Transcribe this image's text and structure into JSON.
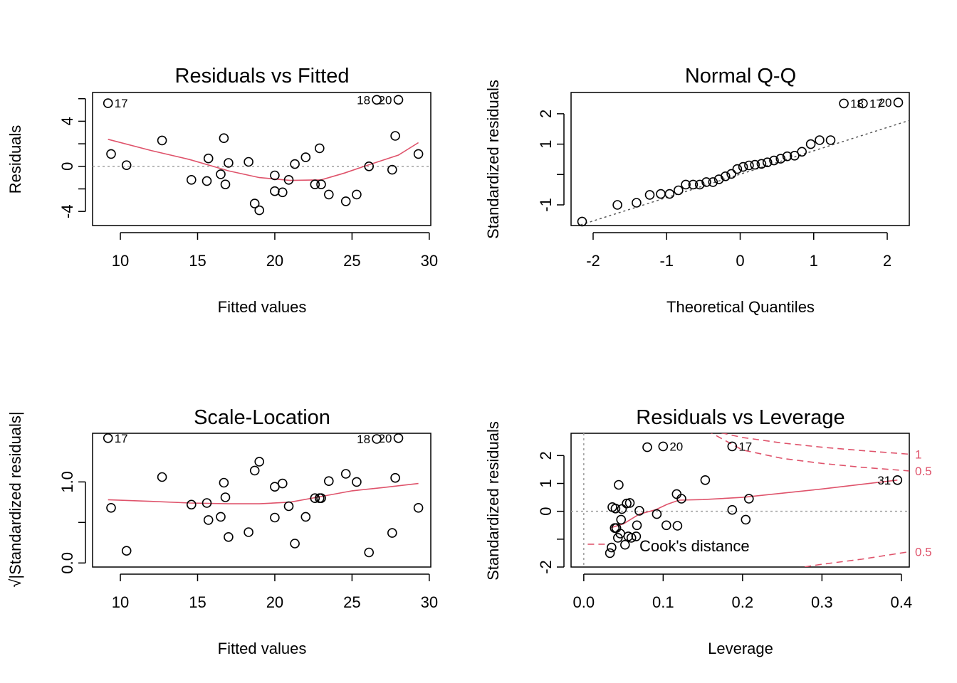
{
  "colors": {
    "smooth": "#DF536B",
    "reference": "#9E9E9E",
    "point": "#000000",
    "cook": "#DF536B"
  },
  "chart_data": [
    {
      "type": "scatter",
      "title": "Residuals vs Fitted",
      "xlabel": "Fitted values",
      "ylabel": "Residuals",
      "xlim": [
        8.2,
        30.1
      ],
      "ylim": [
        -5.25,
        6.55
      ],
      "xticks": [
        10,
        15,
        20,
        25,
        30
      ],
      "yticks": [
        -4,
        0,
        4
      ],
      "yminor": [
        -2,
        2,
        6
      ],
      "reference_line": {
        "y": 0,
        "style": "dotted"
      },
      "points": [
        [
          9.2,
          5.6
        ],
        [
          9.4,
          1.1
        ],
        [
          10.4,
          0.1
        ],
        [
          12.7,
          2.3
        ],
        [
          14.6,
          -1.2
        ],
        [
          15.6,
          -1.3
        ],
        [
          15.7,
          0.7
        ],
        [
          16.5,
          -0.7
        ],
        [
          16.7,
          2.5
        ],
        [
          16.8,
          -1.6
        ],
        [
          17.0,
          0.3
        ],
        [
          18.3,
          0.4
        ],
        [
          18.7,
          -3.3
        ],
        [
          19.0,
          -3.9
        ],
        [
          20.0,
          -2.2
        ],
        [
          20.0,
          -0.8
        ],
        [
          20.5,
          -2.3
        ],
        [
          20.9,
          -1.2
        ],
        [
          21.3,
          0.2
        ],
        [
          22.0,
          0.8
        ],
        [
          22.6,
          -1.6
        ],
        [
          22.9,
          1.6
        ],
        [
          23.0,
          -1.6
        ],
        [
          23.5,
          -2.5
        ],
        [
          24.6,
          -3.1
        ],
        [
          25.3,
          -2.5
        ],
        [
          26.1,
          0.0
        ],
        [
          26.6,
          5.9
        ],
        [
          27.6,
          -0.3
        ],
        [
          27.8,
          2.7
        ],
        [
          28.0,
          5.9
        ],
        [
          29.3,
          1.1
        ]
      ],
      "smooth": [
        [
          9.2,
          2.4
        ],
        [
          12,
          1.4
        ],
        [
          14.5,
          0.6
        ],
        [
          17,
          -0.4
        ],
        [
          19,
          -1.0
        ],
        [
          21,
          -1.25
        ],
        [
          23,
          -1.2
        ],
        [
          24.5,
          -0.6
        ],
        [
          26,
          0.1
        ],
        [
          28,
          1.0
        ],
        [
          29.3,
          2.1
        ]
      ],
      "labels": [
        {
          "text": "17",
          "x": 9.2,
          "y": 5.6,
          "side": "right"
        },
        {
          "text": "18",
          "x": 26.6,
          "y": 5.9,
          "side": "left"
        },
        {
          "text": "20",
          "x": 28.0,
          "y": 5.9,
          "side": "left"
        }
      ]
    },
    {
      "type": "scatter",
      "title": "Normal Q-Q",
      "xlabel": "Theoretical Quantiles",
      "ylabel": "Standardized residuals",
      "xlim": [
        -2.3,
        2.3
      ],
      "ylim": [
        -1.68,
        2.7
      ],
      "xticks": [
        -2,
        -1,
        0,
        1,
        2
      ],
      "yticks": [
        -1,
        1,
        2
      ],
      "yminor": [
        0
      ],
      "reference_line": {
        "points": [
          [
            -2.3,
            -1.76
          ],
          [
            2.3,
            1.78
          ]
        ],
        "style": "dotted"
      },
      "points": [
        [
          -2.15,
          -1.55
        ],
        [
          -1.67,
          -1.0
        ],
        [
          -1.41,
          -0.93
        ],
        [
          -1.23,
          -0.67
        ],
        [
          -1.08,
          -0.64
        ],
        [
          -0.96,
          -0.64
        ],
        [
          -0.84,
          -0.52
        ],
        [
          -0.74,
          -0.33
        ],
        [
          -0.64,
          -0.33
        ],
        [
          -0.55,
          -0.33
        ],
        [
          -0.46,
          -0.25
        ],
        [
          -0.37,
          -0.25
        ],
        [
          -0.29,
          -0.16
        ],
        [
          -0.2,
          -0.06
        ],
        [
          -0.12,
          0.02
        ],
        [
          -0.04,
          0.18
        ],
        [
          0.04,
          0.25
        ],
        [
          0.12,
          0.3
        ],
        [
          0.2,
          0.32
        ],
        [
          0.29,
          0.35
        ],
        [
          0.37,
          0.4
        ],
        [
          0.46,
          0.46
        ],
        [
          0.55,
          0.52
        ],
        [
          0.64,
          0.6
        ],
        [
          0.74,
          0.62
        ],
        [
          0.84,
          0.75
        ],
        [
          0.96,
          1.0
        ],
        [
          1.08,
          1.13
        ],
        [
          1.23,
          1.13
        ],
        [
          1.41,
          2.34
        ],
        [
          1.67,
          2.34
        ],
        [
          2.15,
          2.37
        ]
      ],
      "labels": [
        {
          "text": "18",
          "x": 1.41,
          "y": 2.34,
          "side": "right"
        },
        {
          "text": "17",
          "x": 1.67,
          "y": 2.34,
          "side": "right"
        },
        {
          "text": "20",
          "x": 2.15,
          "y": 2.37,
          "side": "left"
        }
      ]
    },
    {
      "type": "scatter",
      "title": "Scale-Location",
      "xlabel": "Fitted values",
      "ylabel": "√|Standardized residuals|",
      "xlim": [
        8.2,
        30.1
      ],
      "ylim": [
        -0.05,
        1.6
      ],
      "xticks": [
        10,
        15,
        20,
        25,
        30
      ],
      "ytick_labels": [
        "0.0",
        "1.0"
      ],
      "yticks": [
        0,
        1
      ],
      "yminor": [
        0.5
      ],
      "points": [
        [
          9.2,
          1.54
        ],
        [
          9.4,
          0.68
        ],
        [
          10.4,
          0.15
        ],
        [
          12.7,
          1.06
        ],
        [
          14.6,
          0.72
        ],
        [
          15.6,
          0.74
        ],
        [
          15.7,
          0.53
        ],
        [
          16.5,
          0.57
        ],
        [
          16.7,
          0.99
        ],
        [
          16.8,
          0.81
        ],
        [
          17.0,
          0.32
        ],
        [
          18.3,
          0.38
        ],
        [
          18.7,
          1.14
        ],
        [
          19.0,
          1.25
        ],
        [
          20.0,
          0.94
        ],
        [
          20.0,
          0.56
        ],
        [
          20.5,
          0.98
        ],
        [
          20.9,
          0.7
        ],
        [
          21.3,
          0.24
        ],
        [
          22.0,
          0.57
        ],
        [
          22.6,
          0.8
        ],
        [
          22.9,
          0.8
        ],
        [
          23.0,
          0.8
        ],
        [
          23.5,
          1.01
        ],
        [
          24.6,
          1.1
        ],
        [
          25.3,
          1.0
        ],
        [
          26.1,
          0.13
        ],
        [
          26.6,
          1.53
        ],
        [
          27.6,
          0.37
        ],
        [
          27.8,
          1.05
        ],
        [
          28.0,
          1.54
        ],
        [
          29.3,
          0.68
        ]
      ],
      "smooth": [
        [
          9.2,
          0.78
        ],
        [
          12,
          0.76
        ],
        [
          14.5,
          0.74
        ],
        [
          17,
          0.73
        ],
        [
          19,
          0.73
        ],
        [
          21,
          0.75
        ],
        [
          23,
          0.82
        ],
        [
          25,
          0.89
        ],
        [
          27,
          0.93
        ],
        [
          29.3,
          0.98
        ]
      ],
      "labels": [
        {
          "text": "17",
          "x": 9.2,
          "y": 1.54,
          "side": "right"
        },
        {
          "text": "18",
          "x": 26.6,
          "y": 1.53,
          "side": "left"
        },
        {
          "text": "20",
          "x": 28.0,
          "y": 1.54,
          "side": "left"
        }
      ]
    },
    {
      "type": "scatter",
      "title": "Residuals vs Leverage",
      "xlabel": "Leverage",
      "ylabel": "Standardized residuals",
      "xlim": [
        -0.016,
        0.41
      ],
      "ylim": [
        -2.0,
        2.8
      ],
      "xticks": [
        0.0,
        0.1,
        0.2,
        0.3,
        0.4
      ],
      "xtick_labels": [
        "0.0",
        "0.1",
        "0.2",
        "0.3",
        "0.4"
      ],
      "yticks": [
        -2,
        0,
        1,
        2
      ],
      "yminor": [
        -1
      ],
      "reference_line": {
        "y": 0,
        "x": 0,
        "style": "dotted"
      },
      "points": [
        [
          0.033,
          -1.5
        ],
        [
          0.035,
          -1.3
        ],
        [
          0.036,
          0.15
        ],
        [
          0.039,
          -0.6
        ],
        [
          0.04,
          0.1
        ],
        [
          0.041,
          -0.6
        ],
        [
          0.043,
          -0.95
        ],
        [
          0.044,
          0.95
        ],
        [
          0.046,
          -0.8
        ],
        [
          0.047,
          -0.3
        ],
        [
          0.048,
          0.08
        ],
        [
          0.052,
          -1.2
        ],
        [
          0.054,
          0.28
        ],
        [
          0.056,
          -0.9
        ],
        [
          0.058,
          0.3
        ],
        [
          0.06,
          -0.95
        ],
        [
          0.066,
          -0.9
        ],
        [
          0.067,
          -0.5
        ],
        [
          0.07,
          0.02
        ],
        [
          0.08,
          2.3
        ],
        [
          0.092,
          -0.1
        ],
        [
          0.1,
          2.33
        ],
        [
          0.104,
          -0.5
        ],
        [
          0.117,
          0.62
        ],
        [
          0.118,
          -0.52
        ],
        [
          0.123,
          0.45
        ],
        [
          0.153,
          1.12
        ],
        [
          0.187,
          0.05
        ],
        [
          0.187,
          2.33
        ],
        [
          0.204,
          -0.3
        ],
        [
          0.208,
          0.45
        ],
        [
          0.395,
          1.12
        ]
      ],
      "smooth": [
        [
          0.033,
          -0.6
        ],
        [
          0.05,
          -0.45
        ],
        [
          0.07,
          -0.1
        ],
        [
          0.09,
          0.05
        ],
        [
          0.105,
          0.25
        ],
        [
          0.12,
          0.4
        ],
        [
          0.15,
          0.42
        ],
        [
          0.2,
          0.5
        ],
        [
          0.3,
          0.8
        ],
        [
          0.395,
          1.12
        ]
      ],
      "labels": [
        {
          "text": "20",
          "x": 0.1,
          "y": 2.33,
          "side": "right"
        },
        {
          "text": "17",
          "x": 0.187,
          "y": 2.33,
          "side": "right"
        },
        {
          "text": "31",
          "x": 0.395,
          "y": 1.12,
          "side": "left"
        }
      ],
      "cook_lines": [
        {
          "level": "1",
          "label": "1",
          "points": [
            [
              0.16,
              2.9
            ],
            [
              0.2,
              2.65
            ],
            [
              0.25,
              2.45
            ],
            [
              0.3,
              2.3
            ],
            [
              0.35,
              2.18
            ],
            [
              0.41,
              2.05
            ]
          ]
        },
        {
          "level": "0.5",
          "label": "0.5",
          "points": [
            [
              0.155,
              2.9
            ],
            [
              0.2,
              2.2
            ],
            [
              0.25,
              1.9
            ],
            [
              0.3,
              1.72
            ],
            [
              0.35,
              1.58
            ],
            [
              0.41,
              1.45
            ]
          ]
        },
        {
          "level": "0.5",
          "label": "0.5",
          "points": [
            [
              0.265,
              -2.05
            ],
            [
              0.3,
              -1.9
            ],
            [
              0.35,
              -1.72
            ],
            [
              0.41,
              -1.45
            ]
          ]
        },
        {
          "level": "",
          "label": "",
          "points": [
            [
              0.005,
              -1.18
            ],
            [
              0.03,
              -1.18
            ]
          ]
        }
      ],
      "legend": "Cook's distance"
    }
  ]
}
